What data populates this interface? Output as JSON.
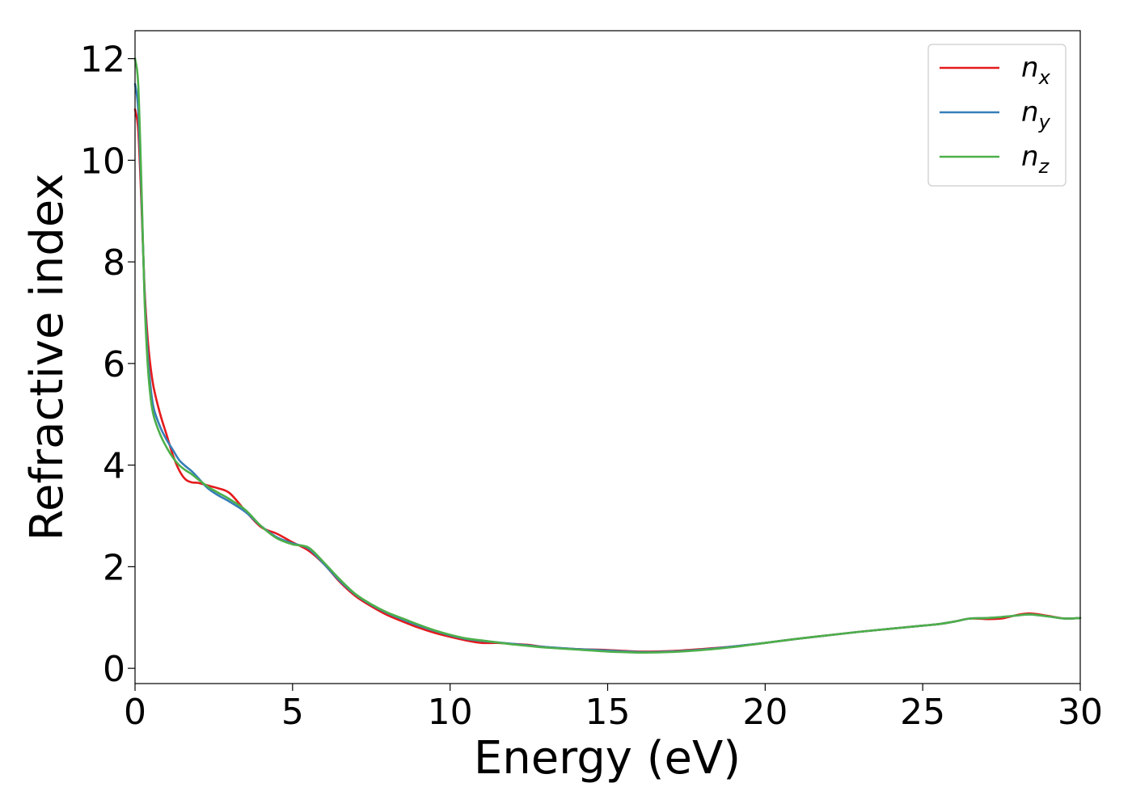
{
  "chart_data": {
    "type": "line",
    "title": "",
    "xlabel": "Energy (eV)",
    "ylabel": "Refractive index",
    "xlim": [
      0,
      30
    ],
    "ylim": [
      -0.3,
      12.55
    ],
    "xticks": [
      "0",
      "5",
      "10",
      "15",
      "20",
      "25",
      "30"
    ],
    "yticks": [
      "0",
      "2",
      "4",
      "6",
      "8",
      "10",
      "12"
    ],
    "grid": false,
    "legend_position": "top-right",
    "series": [
      {
        "name": "n",
        "subscript": "x",
        "color": "#e41a1c",
        "x": [
          0,
          0.1,
          0.2,
          0.3,
          0.4,
          0.5,
          0.6,
          0.8,
          1.0,
          1.2,
          1.4,
          1.6,
          1.8,
          2.0,
          2.3,
          2.6,
          3.0,
          3.5,
          4.0,
          4.5,
          5.0,
          5.5,
          6.0,
          6.5,
          7.0,
          7.5,
          8.0,
          8.5,
          9.0,
          9.5,
          10.0,
          10.5,
          11.0,
          11.5,
          12.0,
          12.5,
          13.0,
          14.0,
          15.0,
          16.0,
          17.0,
          18.0,
          19.0,
          20.0,
          21.0,
          22.0,
          23.0,
          24.0,
          25.0,
          25.5,
          26.0,
          26.5,
          27.0,
          27.5,
          28.0,
          28.4,
          29.0,
          29.5,
          30.0
        ],
        "y": [
          11.0,
          10.6,
          9.2,
          7.5,
          6.5,
          5.9,
          5.5,
          5.0,
          4.6,
          4.2,
          3.9,
          3.72,
          3.66,
          3.65,
          3.6,
          3.55,
          3.45,
          3.1,
          2.78,
          2.65,
          2.48,
          2.32,
          2.05,
          1.7,
          1.42,
          1.22,
          1.05,
          0.92,
          0.8,
          0.7,
          0.62,
          0.55,
          0.5,
          0.5,
          0.48,
          0.46,
          0.42,
          0.38,
          0.36,
          0.33,
          0.34,
          0.38,
          0.43,
          0.5,
          0.58,
          0.65,
          0.72,
          0.78,
          0.84,
          0.87,
          0.92,
          0.98,
          0.97,
          0.98,
          1.05,
          1.08,
          1.03,
          0.98,
          0.99
        ]
      },
      {
        "name": "n",
        "subscript": "y",
        "color": "#377eb8",
        "x": [
          0,
          0.1,
          0.2,
          0.3,
          0.4,
          0.5,
          0.6,
          0.8,
          1.0,
          1.2,
          1.4,
          1.6,
          1.8,
          2.0,
          2.3,
          2.6,
          3.0,
          3.5,
          4.0,
          4.5,
          5.0,
          5.5,
          6.0,
          6.5,
          7.0,
          7.5,
          8.0,
          8.5,
          9.0,
          9.5,
          10.0,
          10.5,
          11.0,
          11.5,
          12.0,
          12.5,
          13.0,
          14.0,
          15.0,
          16.0,
          17.0,
          18.0,
          19.0,
          20.0,
          21.0,
          22.0,
          23.0,
          24.0,
          25.0,
          25.5,
          26.0,
          26.5,
          27.0,
          27.5,
          28.0,
          28.4,
          29.0,
          29.5,
          30.0
        ],
        "y": [
          11.5,
          11.0,
          9.4,
          7.4,
          6.2,
          5.5,
          5.1,
          4.75,
          4.5,
          4.3,
          4.1,
          3.98,
          3.88,
          3.75,
          3.55,
          3.42,
          3.28,
          3.08,
          2.8,
          2.58,
          2.46,
          2.36,
          2.05,
          1.72,
          1.45,
          1.25,
          1.09,
          0.96,
          0.84,
          0.74,
          0.65,
          0.58,
          0.54,
          0.51,
          0.48,
          0.45,
          0.42,
          0.38,
          0.35,
          0.32,
          0.33,
          0.37,
          0.43,
          0.5,
          0.58,
          0.65,
          0.72,
          0.78,
          0.84,
          0.87,
          0.92,
          0.98,
          0.99,
          1.01,
          1.04,
          1.06,
          1.02,
          0.98,
          0.99
        ]
      },
      {
        "name": "n",
        "subscript": "z",
        "color": "#4daf4a",
        "x": [
          0,
          0.1,
          0.2,
          0.3,
          0.4,
          0.5,
          0.6,
          0.8,
          1.0,
          1.2,
          1.4,
          1.6,
          1.8,
          2.0,
          2.3,
          2.6,
          3.0,
          3.5,
          4.0,
          4.5,
          5.0,
          5.5,
          6.0,
          6.5,
          7.0,
          7.5,
          8.0,
          8.5,
          9.0,
          9.5,
          10.0,
          10.5,
          11.0,
          11.5,
          12.0,
          12.5,
          13.0,
          14.0,
          15.0,
          16.0,
          17.0,
          18.0,
          19.0,
          20.0,
          21.0,
          22.0,
          23.0,
          24.0,
          25.0,
          25.5,
          26.0,
          26.5,
          27.0,
          27.5,
          28.0,
          28.4,
          29.0,
          29.5,
          30.0
        ],
        "y": [
          12.0,
          11.5,
          9.6,
          7.3,
          6.0,
          5.3,
          4.95,
          4.6,
          4.35,
          4.15,
          4.0,
          3.9,
          3.82,
          3.72,
          3.58,
          3.47,
          3.33,
          3.12,
          2.8,
          2.56,
          2.44,
          2.38,
          2.08,
          1.75,
          1.46,
          1.26,
          1.1,
          0.98,
          0.86,
          0.75,
          0.66,
          0.59,
          0.55,
          0.51,
          0.47,
          0.44,
          0.41,
          0.37,
          0.33,
          0.31,
          0.32,
          0.36,
          0.42,
          0.5,
          0.58,
          0.65,
          0.72,
          0.78,
          0.84,
          0.87,
          0.92,
          0.98,
          0.99,
          1.01,
          1.04,
          1.06,
          1.02,
          0.98,
          0.99
        ]
      }
    ]
  }
}
